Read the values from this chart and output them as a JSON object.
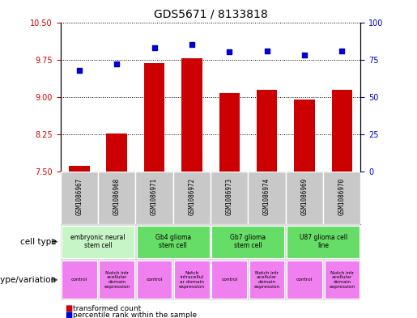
{
  "title": "GDS5671 / 8133818",
  "samples": [
    "GSM1086967",
    "GSM1086968",
    "GSM1086971",
    "GSM1086972",
    "GSM1086973",
    "GSM1086974",
    "GSM1086969",
    "GSM1086970"
  ],
  "bar_values": [
    7.62,
    8.26,
    9.68,
    9.78,
    9.08,
    9.14,
    8.95,
    9.14
  ],
  "dot_values": [
    68,
    72,
    83,
    85,
    80,
    81,
    78,
    81
  ],
  "ylim_left": [
    7.5,
    10.5
  ],
  "ylim_right": [
    0,
    100
  ],
  "yticks_left": [
    7.5,
    8.25,
    9.0,
    9.75,
    10.5
  ],
  "yticks_right": [
    0,
    25,
    50,
    75,
    100
  ],
  "bar_color": "#cc0000",
  "dot_color": "#0000cc",
  "cell_type_groups": [
    {
      "label": "embryonic neural\nstem cell",
      "start": 0,
      "end": 2,
      "color": "#c8f5c8"
    },
    {
      "label": "Gb4 glioma\nstem cell",
      "start": 2,
      "end": 4,
      "color": "#66dd66"
    },
    {
      "label": "Gb7 glioma\nstem cell",
      "start": 4,
      "end": 6,
      "color": "#66dd66"
    },
    {
      "label": "U87 glioma cell\nline",
      "start": 6,
      "end": 8,
      "color": "#66dd66"
    }
  ],
  "genotype_groups": [
    {
      "label": "control",
      "start": 0,
      "end": 1
    },
    {
      "label": "Notch intr\nacellular\ndomain\nexpression",
      "start": 1,
      "end": 2
    },
    {
      "label": "control",
      "start": 2,
      "end": 3
    },
    {
      "label": "Notch\nintracellul\nar domain\nexpression",
      "start": 3,
      "end": 4
    },
    {
      "label": "control",
      "start": 4,
      "end": 5
    },
    {
      "label": "Notch intr\nacellular\ndomain\nexpression",
      "start": 5,
      "end": 6
    },
    {
      "label": "control",
      "start": 6,
      "end": 7
    },
    {
      "label": "Notch intr\nacellular\ndomain\nexpression",
      "start": 7,
      "end": 8
    }
  ],
  "genotype_color": "#f080f0",
  "sample_bg_color": "#c8c8c8",
  "cell_type_label": "cell type",
  "genotype_label": "genotype/variation",
  "legend_bar": "transformed count",
  "legend_dot": "percentile rank within the sample",
  "background_color": "#ffffff",
  "tick_label_color_left": "#cc0000",
  "tick_label_color_right": "#0000cc"
}
